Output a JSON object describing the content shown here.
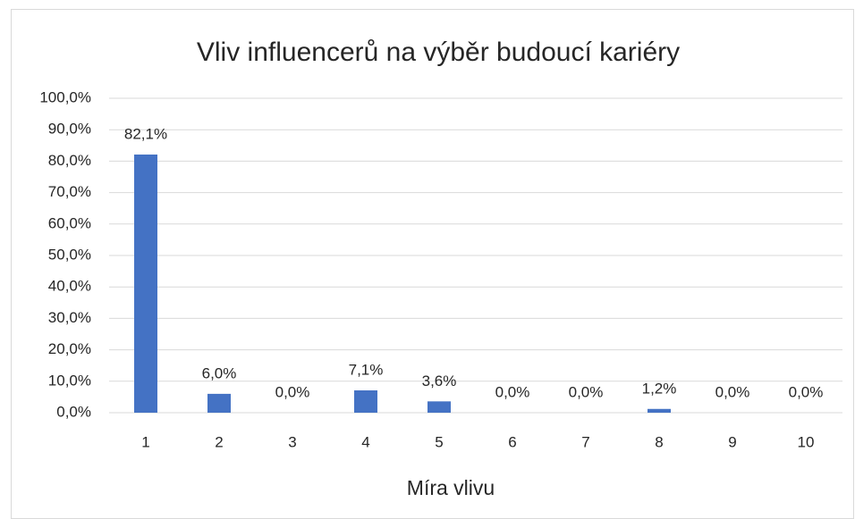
{
  "chart_data": {
    "type": "bar",
    "title": "Vliv influencerů na výběr budoucí kariéry",
    "x_label": "Míra vlivu",
    "categories": [
      "1",
      "2",
      "3",
      "4",
      "5",
      "6",
      "7",
      "8",
      "9",
      "10"
    ],
    "values": [
      82.1,
      6.0,
      0.0,
      7.1,
      3.6,
      0.0,
      0.0,
      1.2,
      0.0,
      0.0
    ],
    "value_labels": [
      "82,1%",
      "6,0%",
      "0,0%",
      "7,1%",
      "3,6%",
      "0,0%",
      "0,0%",
      "1,2%",
      "0,0%",
      "0,0%"
    ],
    "color": "#4472c4",
    "ylim": [
      0,
      100
    ],
    "yticks": [
      {
        "value": 0,
        "label": "0,0%"
      },
      {
        "value": 10,
        "label": "10,0%"
      },
      {
        "value": 20,
        "label": "20,0%"
      },
      {
        "value": 30,
        "label": "30,0%"
      },
      {
        "value": 40,
        "label": "40,0%"
      },
      {
        "value": 50,
        "label": "50,0%"
      },
      {
        "value": 60,
        "label": "60,0%"
      },
      {
        "value": 70,
        "label": "70,0%"
      },
      {
        "value": 80,
        "label": "80,0%"
      },
      {
        "value": 90,
        "label": "90,0%"
      },
      {
        "value": 100,
        "label": "100,0%"
      }
    ],
    "grid": true
  }
}
